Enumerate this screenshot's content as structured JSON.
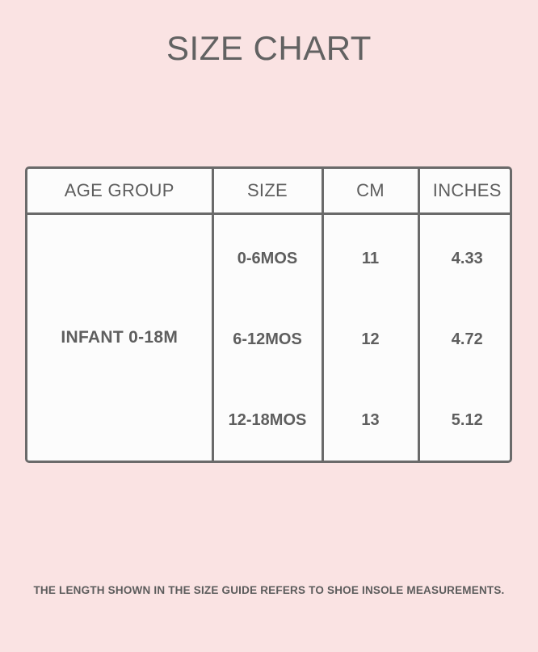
{
  "title": "SIZE CHART",
  "table": {
    "headers": [
      "AGE GROUP",
      "SIZE",
      "CM",
      "INCHES"
    ],
    "age_group": "INFANT 0-18M",
    "rows": [
      {
        "size": "0-6MOS",
        "cm": "11",
        "inches": "4.33"
      },
      {
        "size": "6-12MOS",
        "cm": "12",
        "inches": "4.72"
      },
      {
        "size": "12-18MOS",
        "cm": "13",
        "inches": "5.12"
      }
    ]
  },
  "footnote": "THE LENGTH SHOWN IN THE SIZE GUIDE REFERS TO SHOE INSOLE MEASUREMENTS.",
  "colors": {
    "background": "#fae3e3",
    "table_background": "#fcfcfc",
    "border": "#6a6a6a",
    "text": "#5f5f5f"
  }
}
